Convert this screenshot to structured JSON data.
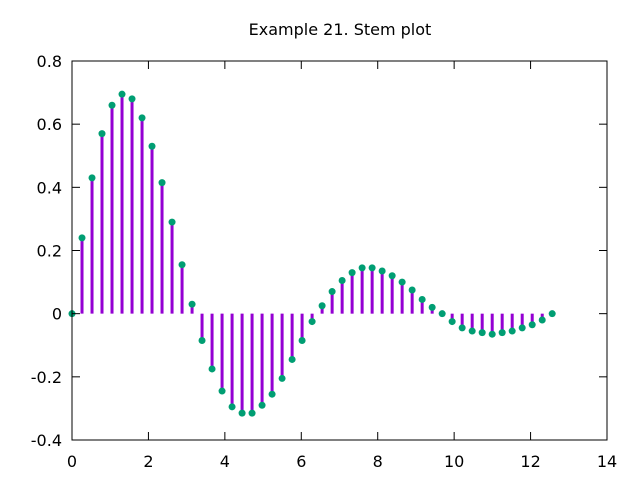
{
  "chart_data": {
    "type": "stem",
    "title": "Example 21. Stem plot",
    "xlabel": "",
    "ylabel": "",
    "xlim": [
      0,
      14
    ],
    "ylim": [
      -0.4,
      0.8
    ],
    "x_ticks": [
      0,
      2,
      4,
      6,
      8,
      10,
      12,
      14
    ],
    "y_ticks": [
      -0.4,
      -0.2,
      0,
      0.2,
      0.4,
      0.6,
      0.8
    ],
    "x_tick_labels": [
      "0",
      "2",
      "4",
      "6",
      "8",
      "10",
      "12",
      "14"
    ],
    "y_tick_labels": [
      "-0.4",
      "-0.2",
      "0",
      "0.2",
      "0.4",
      "0.6",
      "0.8"
    ],
    "grid": false,
    "stem_color": "#9400d3",
    "marker_color": "#009e73",
    "series": [
      {
        "x": [
          0,
          0.262,
          0.524,
          0.785,
          1.047,
          1.309,
          1.571,
          1.833,
          2.094,
          2.356,
          2.618,
          2.88,
          3.142,
          3.403,
          3.665,
          3.927,
          4.189,
          4.451,
          4.712,
          4.974,
          5.236,
          5.498,
          5.76,
          6.021,
          6.283,
          6.545,
          6.807,
          7.069,
          7.33,
          7.592,
          7.854,
          8.116,
          8.378,
          8.639,
          8.901,
          9.163,
          9.425,
          9.687,
          9.948,
          10.21,
          10.472,
          10.734,
          10.996,
          11.257,
          11.519,
          11.781,
          12.043,
          12.305,
          12.566
        ],
        "values": [
          0,
          0.24,
          0.43,
          0.57,
          0.66,
          0.695,
          0.68,
          0.62,
          0.53,
          0.415,
          0.29,
          0.155,
          0.03,
          -0.085,
          -0.175,
          -0.245,
          -0.295,
          -0.315,
          -0.315,
          -0.29,
          -0.255,
          -0.205,
          -0.145,
          -0.085,
          -0.025,
          0.025,
          0.07,
          0.105,
          0.13,
          0.145,
          0.145,
          0.135,
          0.12,
          0.1,
          0.075,
          0.045,
          0.02,
          0,
          -0.025,
          -0.045,
          -0.055,
          -0.06,
          -0.065,
          -0.06,
          -0.055,
          -0.045,
          -0.035,
          -0.02,
          0
        ]
      }
    ]
  }
}
